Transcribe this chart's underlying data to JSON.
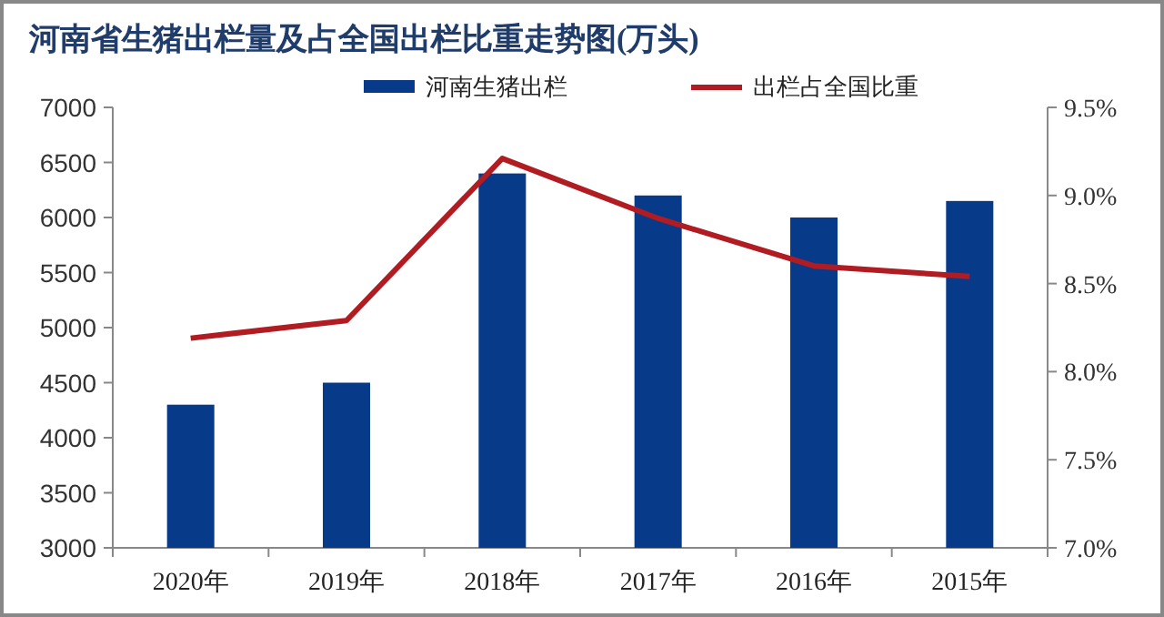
{
  "chart_data": {
    "type": "bar",
    "title": "河南省生猪出栏量及占全国出栏比重走势图(万头)",
    "categories": [
      "2020年",
      "2019年",
      "2018年",
      "2017年",
      "2016年",
      "2015年"
    ],
    "series": [
      {
        "name": "河南生猪出栏",
        "color": "#083a8a",
        "values": [
          4300,
          4500,
          6400,
          6200,
          6000,
          6150
        ]
      },
      {
        "name": "出栏占全国比重",
        "type": "line",
        "axis": "y2",
        "color": "#b01c22",
        "values": [
          8.19,
          8.29,
          9.21,
          8.87,
          8.6,
          8.54
        ]
      }
    ],
    "ylim": [
      3000,
      7000
    ],
    "yticks": [
      3000,
      3500,
      4000,
      4500,
      5000,
      5500,
      6000,
      6500,
      7000
    ],
    "y2lim": [
      7.0,
      9.5
    ],
    "y2ticks": [
      {
        "value": 7.0,
        "label": "7.0%"
      },
      {
        "value": 7.5,
        "label": "7.5%"
      },
      {
        "value": 8.0,
        "label": "8.0%"
      },
      {
        "value": 8.5,
        "label": "8.5%"
      },
      {
        "value": 9.0,
        "label": "9.0%"
      },
      {
        "value": 9.5,
        "label": "9.5%"
      }
    ],
    "legend": "top",
    "grid": false
  }
}
